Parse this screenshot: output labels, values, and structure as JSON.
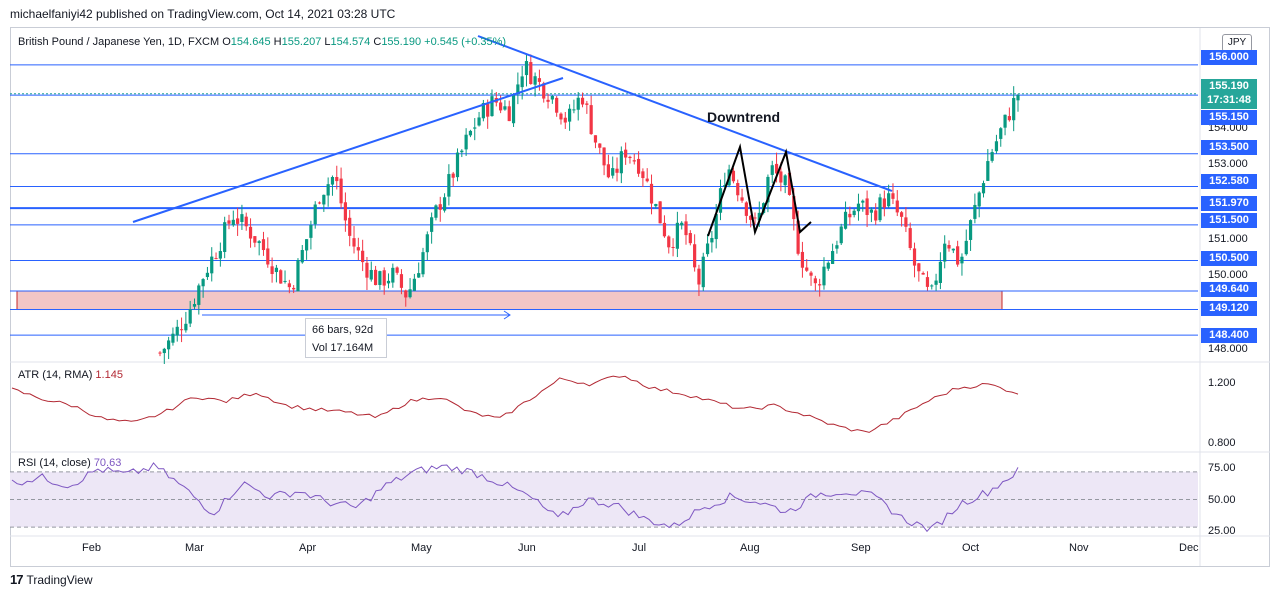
{
  "header": {
    "publisher_text": "michaelfaniyi42 published on TradingView.com, Oct 14, 2021 03:28 UTC"
  },
  "legend": {
    "symbol": "British Pound / Japanese Yen, 1D, FXCM",
    "o_label": "O",
    "o_value": "154.645",
    "h_label": "H",
    "h_value": "155.207",
    "l_label": "L",
    "l_value": "154.574",
    "c_label": "C",
    "c_value": "155.190",
    "change": "+0.545 (+0.35%)"
  },
  "currency_badge": "JPY",
  "annotations": {
    "downtrend_label": "Downtrend",
    "measure_bars": "66 bars, 92d",
    "measure_vol": "Vol 17.164M"
  },
  "price_axis": {
    "ticks": [
      "154.000",
      "153.000",
      "151.000",
      "150.000",
      "148.000"
    ],
    "level_tags": [
      "156.000",
      "155.150",
      "153.500",
      "152.580",
      "151.970",
      "151.500",
      "150.500",
      "149.640",
      "149.120",
      "148.400"
    ],
    "current_price": "155.190",
    "countdown": "17:31:48"
  },
  "indicators": {
    "atr": {
      "title": "ATR (14, RMA)",
      "value": "1.145",
      "ticks": [
        "1.200",
        "0.800"
      ]
    },
    "rsi": {
      "title": "RSI (14, close)",
      "value": "70.63",
      "ticks": [
        "75.00",
        "50.00",
        "25.00"
      ]
    }
  },
  "time_axis": {
    "months": [
      "Feb",
      "Mar",
      "Apr",
      "May",
      "Jun",
      "Jul",
      "Aug",
      "Sep",
      "Oct",
      "Nov",
      "Dec"
    ]
  },
  "footer": {
    "brand": "TradingView"
  },
  "colors": {
    "up": "#089981",
    "down": "#f23645",
    "level_line": "#2962ff",
    "support_zone": "#f2c6c6",
    "atr_line": "#b22833",
    "rsi_line": "#7e57c2",
    "rsi_band": "#ede7f6"
  },
  "chart_data": {
    "type": "candlestick",
    "title": "British Pound / Japanese Yen, 1D, FXCM",
    "ylim": [
      147.7,
      156.7
    ],
    "horizontal_levels": [
      156.0,
      155.15,
      153.5,
      152.58,
      151.97,
      151.5,
      150.5,
      149.64,
      149.12,
      148.4
    ],
    "support_zone": [
      149.12,
      149.64
    ],
    "current_price": 155.19,
    "months": [
      "Feb",
      "Mar",
      "Apr",
      "May",
      "Jun",
      "Jul",
      "Aug",
      "Sep",
      "Oct",
      "Nov",
      "Dec"
    ],
    "close_path": [
      147.9,
      148.4,
      149.1,
      150.1,
      150.9,
      151.8,
      151.4,
      150.9,
      150.2,
      149.7,
      151.0,
      152.4,
      152.9,
      151.2,
      150.4,
      149.9,
      150.1,
      149.5,
      150.6,
      151.9,
      152.8,
      153.8,
      154.6,
      155.0,
      154.7,
      156.0,
      155.5,
      155.1,
      154.4,
      155.2,
      153.8,
      152.7,
      153.6,
      153.2,
      152.1,
      151.0,
      151.5,
      149.8,
      151.3,
      153.2,
      152.3,
      151.4,
      153.1,
      152.6,
      150.7,
      149.7,
      150.6,
      151.5,
      152.1,
      151.8,
      152.3,
      151.6,
      150.2,
      149.4,
      151.2,
      150.4,
      151.9,
      153.4,
      154.3,
      155.19
    ],
    "atr": {
      "range": [
        0.75,
        1.3
      ],
      "values": [
        1.17,
        1.1,
        1.05,
        0.95,
        0.92,
        1.0,
        1.12,
        1.08,
        1.15,
        1.05,
        1.02,
        1.0,
        0.96,
        1.08,
        1.12,
        1.0,
        0.95,
        1.1,
        1.25,
        1.21,
        1.28,
        1.18,
        1.14,
        1.08,
        1.02,
        1.05,
        0.98,
        0.9,
        0.85,
        0.95,
        1.08,
        1.18,
        1.21,
        1.145
      ]
    },
    "rsi": {
      "range": [
        25,
        80
      ],
      "overbought": 70,
      "middle": 50,
      "oversold": 30,
      "values": [
        62,
        66,
        60,
        72,
        68,
        74,
        58,
        40,
        62,
        52,
        56,
        48,
        44,
        60,
        70,
        74,
        70,
        62,
        52,
        36,
        50,
        46,
        36,
        30,
        44,
        52,
        48,
        41,
        54,
        56,
        52,
        36,
        28,
        47,
        56,
        70.63
      ]
    }
  }
}
